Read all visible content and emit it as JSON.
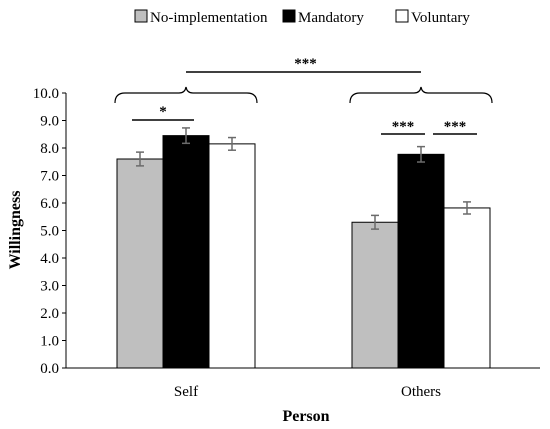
{
  "chart_data": {
    "type": "bar",
    "title": "",
    "xlabel": "Person",
    "ylabel": "Willingness",
    "ylim": [
      0,
      10
    ],
    "yticks": [
      "0.0",
      "1.0",
      "2.0",
      "3.0",
      "4.0",
      "5.0",
      "6.0",
      "7.0",
      "8.0",
      "9.0",
      "10.0"
    ],
    "categories": [
      "Self",
      "Others"
    ],
    "grid": false,
    "legend_position": "top",
    "series": [
      {
        "name": "No-implementation",
        "color": "#bfbfbf",
        "values": [
          7.6,
          5.3
        ],
        "error": [
          0.25,
          0.25
        ]
      },
      {
        "name": "Mandatory",
        "color": "#000000",
        "values": [
          8.45,
          7.77
        ],
        "error": [
          0.28,
          0.28
        ]
      },
      {
        "name": "Voluntary",
        "color": "#ffffff",
        "values": [
          8.15,
          5.82
        ],
        "error": [
          0.23,
          0.22
        ]
      }
    ],
    "significance": [
      {
        "label": "*",
        "between": "Self: No-implementation vs Mandatory"
      },
      {
        "label": "***",
        "between": "Others: No-implementation vs Mandatory"
      },
      {
        "label": "***",
        "between": "Others: Mandatory vs Voluntary"
      },
      {
        "label": "***",
        "between": "Self vs Others"
      }
    ]
  }
}
